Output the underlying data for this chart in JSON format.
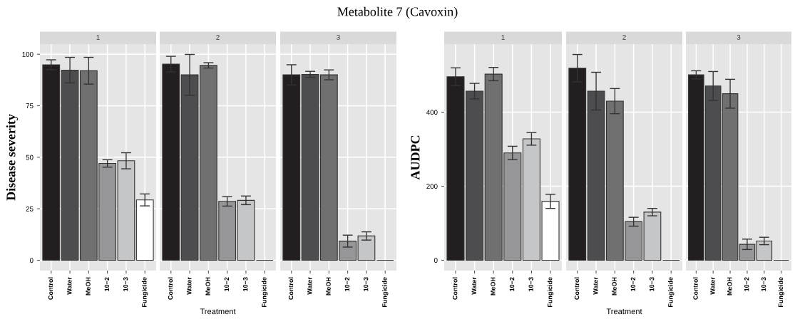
{
  "chart_data": [
    {
      "type": "bar",
      "title": "1",
      "ylabel": "Disease severity",
      "annotations": [
        "Metabolite 7 (Cavoxin)"
      ],
      "categories": [
        "Control",
        "Water",
        "MeOH",
        "10−2",
        "10−3",
        "Fungicide"
      ],
      "values": [
        94.9,
        92.3,
        92.0,
        47.0,
        48.3,
        29.3
      ],
      "errors": [
        2.4,
        6.2,
        6.5,
        1.8,
        3.9,
        2.9
      ],
      "colors": [
        "#231f20",
        "#4d4d4f",
        "#707071",
        "#969698",
        "#c5c6c8",
        "#ffffff"
      ],
      "ylim": [
        -5,
        104.9
      ],
      "yticks": [
        0,
        25,
        50,
        75,
        100
      ],
      "grid": true
    },
    {
      "type": "bar",
      "title": "2",
      "categories": [
        "Control",
        "Water",
        "MeOH",
        "10−2",
        "10−3",
        "Fungicide"
      ],
      "values": [
        95.2,
        90.0,
        94.6,
        28.6,
        29.1,
        0
      ],
      "errors": [
        3.8,
        9.9,
        1.3,
        2.3,
        2.1,
        null
      ],
      "colors": [
        "#231f20",
        "#4d4d4f",
        "#707071",
        "#969698",
        "#c5c6c8",
        "#333333"
      ],
      "ylim": [
        -5,
        104.9
      ],
      "yticks": [
        0,
        25,
        50,
        75,
        100
      ],
      "grid": true,
      "tick_labels": "x",
      "xlabel": "Treatment"
    },
    {
      "type": "bar",
      "title": "3",
      "categories": [
        "Control",
        "Water",
        "MeOH",
        "10−2",
        "10−3",
        "Fungicide"
      ],
      "values": [
        90.0,
        90.2,
        90.0,
        9.3,
        11.8,
        0
      ],
      "errors": [
        4.9,
        1.5,
        2.4,
        2.9,
        2.0,
        null
      ],
      "colors": [
        "#231f20",
        "#4d4d4f",
        "#707071",
        "#969698",
        "#c5c6c8",
        "#333333"
      ],
      "ylim": [
        -5,
        104.9
      ],
      "yticks": [
        0,
        25,
        50,
        75,
        100
      ],
      "grid": true,
      "tick_labels": "x"
    },
    {
      "type": "bar",
      "title": "1",
      "ylabel": "AUDPC",
      "categories": [
        "Control",
        "Water",
        "MeOH",
        "10−2",
        "10−3",
        "Fungicide"
      ],
      "values": [
        496,
        457,
        503,
        290,
        328,
        159
      ],
      "errors": [
        24,
        21,
        18,
        18,
        17,
        19
      ],
      "colors": [
        "#231f20",
        "#4d4d4f",
        "#707071",
        "#969698",
        "#c5c6c8",
        "#ffffff"
      ],
      "ylim": [
        -28,
        584
      ],
      "yticks": [
        0,
        200,
        400
      ],
      "grid": true
    },
    {
      "type": "bar",
      "title": "2",
      "categories": [
        "Control",
        "Water",
        "MeOH",
        "10−2",
        "10−3",
        "Fungicide"
      ],
      "values": [
        519,
        457,
        430,
        104,
        130,
        0
      ],
      "errors": [
        37,
        51,
        34,
        12,
        10,
        null
      ],
      "colors": [
        "#231f20",
        "#4d4d4f",
        "#707071",
        "#969698",
        "#c5c6c8",
        "#333333"
      ],
      "ylim": [
        -28,
        584
      ],
      "yticks": [
        0,
        200,
        400
      ],
      "grid": true,
      "tick_labels": "x",
      "xlabel": "Treatment"
    },
    {
      "type": "bar",
      "title": "3",
      "categories": [
        "Control",
        "Water",
        "MeOH",
        "10−2",
        "10−3",
        "Fungicide"
      ],
      "values": [
        501,
        471,
        450,
        43,
        52,
        0
      ],
      "errors": [
        11,
        39,
        39,
        14,
        10,
        null
      ],
      "colors": [
        "#231f20",
        "#4d4d4f",
        "#707071",
        "#969698",
        "#c5c6c8",
        "#333333"
      ],
      "ylim": [
        -28,
        584
      ],
      "yticks": [
        0,
        200,
        400
      ],
      "grid": true,
      "tick_labels": "x"
    }
  ]
}
